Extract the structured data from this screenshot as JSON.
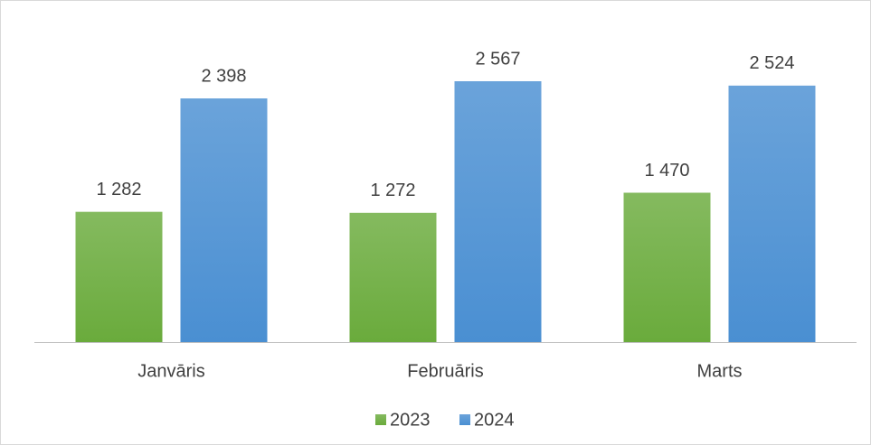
{
  "chart_data": {
    "type": "bar",
    "categories": [
      "Janvāris",
      "Februāris",
      "Marts"
    ],
    "series": [
      {
        "name": "2023",
        "color": "#6aab3c",
        "values": [
          1282,
          1272,
          1470
        ],
        "value_labels": [
          "1 282",
          "1 272",
          "1 470"
        ]
      },
      {
        "name": "2024",
        "color": "#4a8fd2",
        "values": [
          2398,
          2567,
          2524
        ],
        "value_labels": [
          "2 398",
          "2 567",
          "2 524"
        ]
      }
    ],
    "legend": "bottom"
  }
}
